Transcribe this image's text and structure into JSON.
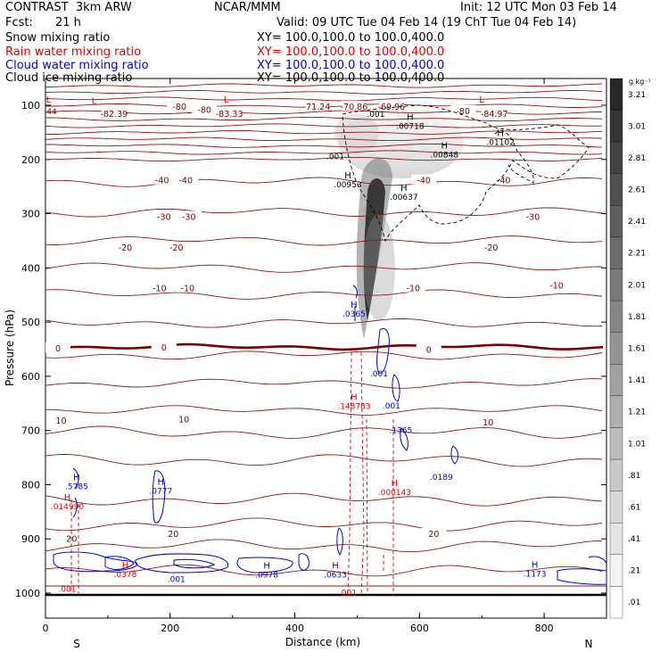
{
  "header": {
    "model": "CONTRAST  3km ARW",
    "org": "NCAR/MMM",
    "init": "Init: 12 UTC Mon 03 Feb 14",
    "fcst_label": "Fcst:",
    "fcst_value": "21 h",
    "valid": "Valid: 09 UTC Tue 04 Feb 14 (19 ChT Tue 04 Feb 14)"
  },
  "legend": [
    {
      "name": "Snow mixing ratio",
      "xy": "XY= 100.0,100.0 to 100.0,400.0",
      "color": "#000000"
    },
    {
      "name": "Rain water mixing ratio",
      "xy": "XY= 100.0,100.0 to 100.0,400.0",
      "color": "#e00000"
    },
    {
      "name": "Cloud water mixing ratio",
      "xy": "XY= 100.0,100.0 to 100.0,400.0",
      "color": "#0000d8"
    },
    {
      "name": "Cloud ice mixing ratio",
      "xy": "XY= 100.0,100.0 to 100.0,400.0",
      "color": "#000000"
    }
  ],
  "chart_data": {
    "type": "contour-cross-section",
    "xlabel": "Distance (km)",
    "ylabel": "Pressure (hPa)",
    "xlim": [
      0,
      900
    ],
    "ylim": [
      1040,
      60
    ],
    "x_ticks": [
      0,
      200,
      400,
      600,
      800
    ],
    "y_ticks": [
      100,
      200,
      300,
      400,
      500,
      600,
      700,
      800,
      900,
      1000
    ],
    "direction_left": "S",
    "direction_right": "N",
    "colorbar_unit": "g kg⁻¹",
    "colorbar_labels": [
      "3.21",
      "3.01",
      "2.81",
      "2.61",
      "2.41",
      "2.21",
      "2.01",
      "1.81",
      "1.61",
      "1.41",
      "1.21",
      "1.01",
      ".81",
      ".61",
      ".41",
      ".21",
      ".01"
    ],
    "temperature_levels": [
      -80,
      -70,
      -60,
      -50,
      -40,
      -30,
      -20,
      -10,
      0,
      10,
      20,
      30,
      40
    ],
    "temperature_labels": [
      {
        "text": "-80",
        "x": 215,
        "p": 105
      },
      {
        "text": "-80",
        "x": 255,
        "p": 111
      },
      {
        "text": "-80",
        "x": 670,
        "p": 113
      },
      {
        "text": "-71.24",
        "x": 435,
        "p": 105
      },
      {
        "text": "-70.86",
        "x": 495,
        "p": 105
      },
      {
        "text": "-69.96",
        "x": 555,
        "p": 105
      },
      {
        "text": "-84.97",
        "x": 720,
        "p": 118
      },
      {
        "text": "-82.39",
        "x": 110,
        "p": 118
      },
      {
        "text": "-83.33",
        "x": 295,
        "p": 118
      },
      {
        "text": "-40",
        "x": 187,
        "p": 241
      },
      {
        "text": "-40",
        "x": 225,
        "p": 241
      },
      {
        "text": "-40",
        "x": 607,
        "p": 241
      },
      {
        "text": "-40",
        "x": 735,
        "p": 241
      },
      {
        "text": "-30",
        "x": 190,
        "p": 308
      },
      {
        "text": "-30",
        "x": 230,
        "p": 308
      },
      {
        "text": "-30",
        "x": 782,
        "p": 308
      },
      {
        "text": "-20",
        "x": 128,
        "p": 365
      },
      {
        "text": "-20",
        "x": 210,
        "p": 365
      },
      {
        "text": "-20",
        "x": 715,
        "p": 365
      },
      {
        "text": "-10",
        "x": 183,
        "p": 440
      },
      {
        "text": "-10",
        "x": 228,
        "p": 440
      },
      {
        "text": "-10",
        "x": 590,
        "p": 440
      },
      {
        "text": "-10",
        "x": 820,
        "p": 435
      },
      {
        "text": "0",
        "x": 20,
        "p": 551
      },
      {
        "text": "0",
        "x": 190,
        "p": 549
      },
      {
        "text": "0",
        "x": 615,
        "p": 553
      },
      {
        "text": "10",
        "x": 25,
        "p": 684
      },
      {
        "text": "10",
        "x": 222,
        "p": 682
      },
      {
        "text": "10",
        "x": 710,
        "p": 687
      },
      {
        "text": "20",
        "x": 42,
        "p": 902
      },
      {
        "text": "20",
        "x": 205,
        "p": 893
      },
      {
        "text": "20",
        "x": 623,
        "p": 893
      }
    ],
    "extrema": [
      {
        "type": "L",
        "value": "",
        "x": 5,
        "p": 108,
        "color": "#e00000"
      },
      {
        "type": "",
        "value": ".44",
        "x": 8,
        "p": 113,
        "color": "#800000"
      },
      {
        "type": "L",
        "value": "",
        "x": 78,
        "p": 111,
        "color": "#e00000"
      },
      {
        "type": "L",
        "value": "",
        "x": 290,
        "p": 108,
        "color": "#e00000"
      },
      {
        "type": "L",
        "value": "",
        "x": 700,
        "p": 108,
        "color": "#e00000"
      },
      {
        "type": "",
        "value": ".001",
        "x": 530,
        "p": 118,
        "color": "#000000"
      },
      {
        "type": "H",
        "value": ".00718",
        "x": 585,
        "p": 140,
        "color": "#000000"
      },
      {
        "type": "H",
        "value": ".01102",
        "x": 730,
        "p": 170,
        "color": "#000000"
      },
      {
        "type": "H",
        "value": ".00848",
        "x": 640,
        "p": 193,
        "color": "#000000"
      },
      {
        "type": "",
        "value": ".001",
        "x": 465,
        "p": 196,
        "color": "#000000"
      },
      {
        "type": "H",
        "value": ".00953",
        "x": 485,
        "p": 248,
        "color": "#000000"
      },
      {
        "type": "H",
        "value": ".00637",
        "x": 575,
        "p": 271,
        "color": "#000000"
      },
      {
        "type": "H",
        "value": ".0365",
        "x": 495,
        "p": 487,
        "color": "#0000d8"
      },
      {
        "type": "",
        "value": ".001",
        "x": 535,
        "p": 597,
        "color": "#0000d8"
      },
      {
        "type": "H",
        "value": ".148783",
        "x": 495,
        "p": 657,
        "color": "#e00000"
      },
      {
        "type": "",
        "value": ".001",
        "x": 555,
        "p": 656,
        "color": "#0000d8"
      },
      {
        "type": "",
        "value": ".1365",
        "x": 570,
        "p": 701,
        "color": "#0000d8"
      },
      {
        "type": "H",
        "value": ".5785",
        "x": 50,
        "p": 805,
        "color": "#0000d8"
      },
      {
        "type": "H",
        "value": ".014990",
        "x": 35,
        "p": 842,
        "color": "#e00000"
      },
      {
        "type": "H",
        "value": ".0777",
        "x": 185,
        "p": 813,
        "color": "#0000d8"
      },
      {
        "type": "H",
        "value": ".000143",
        "x": 560,
        "p": 816,
        "color": "#e00000"
      },
      {
        "type": "",
        "value": ".0189",
        "x": 635,
        "p": 788,
        "color": "#0000d8"
      },
      {
        "type": "H",
        "value": ".0378",
        "x": 128,
        "p": 967,
        "color": "#e00000"
      },
      {
        "type": "",
        "value": ".001",
        "x": 210,
        "p": 976,
        "color": "#0000d8"
      },
      {
        "type": "H",
        "value": ".0978",
        "x": 355,
        "p": 968,
        "color": "#0000d8"
      },
      {
        "type": "H",
        "value": ".0633",
        "x": 465,
        "p": 968,
        "color": "#0000d8"
      },
      {
        "type": "H",
        "value": ".1173",
        "x": 785,
        "p": 966,
        "color": "#0000d8"
      },
      {
        "type": "",
        "value": ".001",
        "x": 35,
        "p": 994,
        "color": "#e00000"
      },
      {
        "type": "",
        "value": ".001",
        "x": 485,
        "p": 1001,
        "color": "#e00000"
      }
    ]
  }
}
